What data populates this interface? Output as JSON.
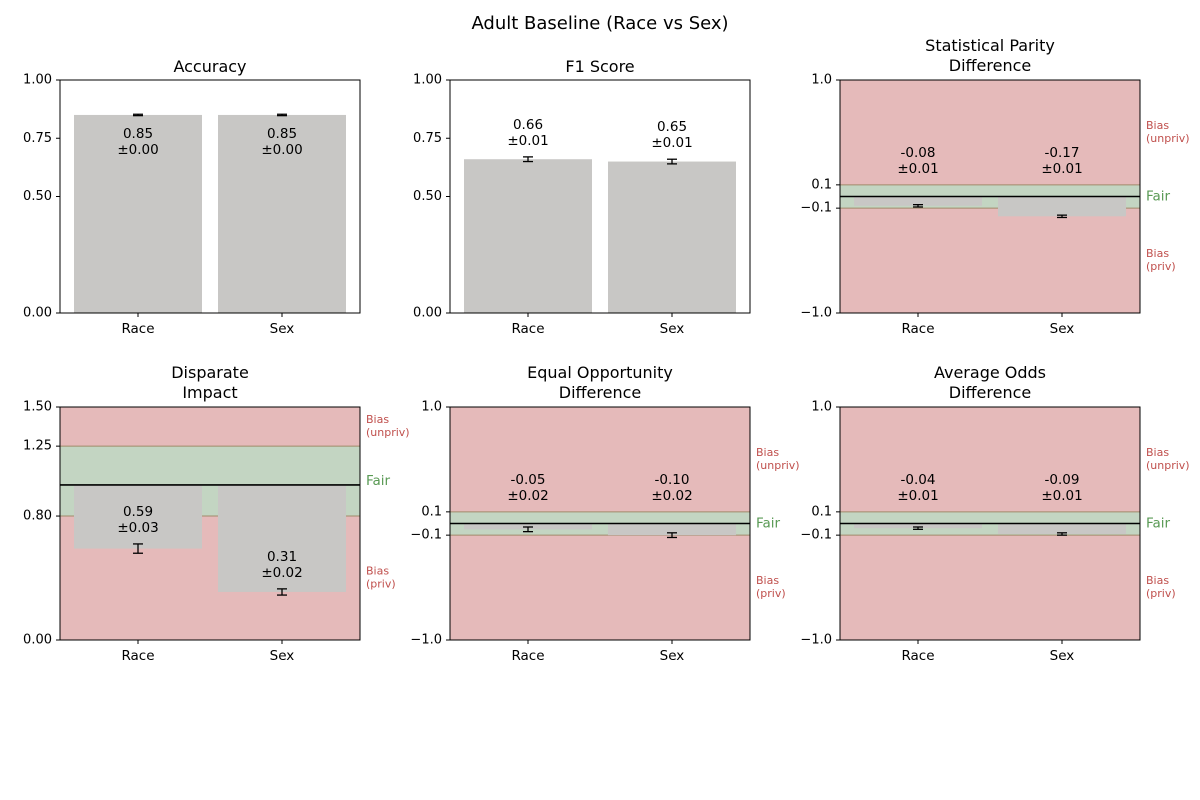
{
  "figure_title": "Adult Baseline (Race vs Sex)",
  "colors": {
    "bar": "#c8c7c5",
    "bias_zone": "#e5baba",
    "fair_zone": "#c3d5c2",
    "bias_text": "#c0504d",
    "fair_text": "#5a9a55",
    "zone_border": "#a08a6a"
  },
  "zone_labels": {
    "bias_unpriv": "Bias\n(unpriv)",
    "fair": "Fair",
    "bias_priv": "Bias\n(priv)"
  },
  "chart_data": [
    {
      "type": "bar",
      "title": "Accuracy",
      "categories": [
        "Race",
        "Sex"
      ],
      "values": [
        0.85,
        0.85
      ],
      "errors": [
        0.003,
        0.003
      ],
      "labels": [
        "0.85\n±0.00",
        "0.85\n±0.00"
      ],
      "ylim": [
        0,
        1
      ],
      "yscale": "linear",
      "yticks": [
        0,
        0.5,
        0.75,
        1
      ],
      "ytick_labels": [
        "0.00",
        "0.50",
        "0.75",
        "1.00"
      ],
      "label_placement": "inside",
      "fairness": null
    },
    {
      "type": "bar",
      "title": "F1 Score",
      "categories": [
        "Race",
        "Sex"
      ],
      "values": [
        0.66,
        0.65
      ],
      "errors": [
        0.01,
        0.01
      ],
      "labels": [
        "0.66\n±0.01",
        "0.65\n±0.01"
      ],
      "ylim": [
        0,
        1
      ],
      "yscale": "linear",
      "yticks": [
        0,
        0.5,
        0.75,
        1
      ],
      "ytick_labels": [
        "0.00",
        "0.50",
        "0.75",
        "1.00"
      ],
      "label_placement": "above",
      "fairness": null
    },
    {
      "type": "bar",
      "title": "Statistical Parity\nDifference",
      "categories": [
        "Race",
        "Sex"
      ],
      "values": [
        -0.08,
        -0.17
      ],
      "errors": [
        0.01,
        0.01
      ],
      "labels": [
        "-0.08\n±0.01",
        "-0.17\n±0.01"
      ],
      "ylim": [
        -1,
        1
      ],
      "yscale": "piecewise",
      "yticks": [
        -1,
        -0.1,
        0.1,
        1
      ],
      "ytick_labels": [
        "−1.0",
        "−0.1",
        "0.1",
        "1.0"
      ],
      "label_placement": "above",
      "fairness": {
        "fair_range": [
          -0.1,
          0.1
        ],
        "reference": 0
      }
    },
    {
      "type": "bar",
      "title": "Disparate\nImpact",
      "categories": [
        "Race",
        "Sex"
      ],
      "values": [
        0.59,
        0.31
      ],
      "errors": [
        0.03,
        0.02
      ],
      "labels": [
        "0.59\n±0.03",
        "0.31\n±0.02"
      ],
      "ylim": [
        0,
        1.5
      ],
      "yscale": "piecewise",
      "yticks": [
        0,
        0.8,
        1.25,
        1.5
      ],
      "ytick_labels": [
        "0.00",
        "0.80",
        "1.25",
        "1.50"
      ],
      "label_placement": "above",
      "fairness": {
        "fair_range": [
          0.8,
          1.25
        ],
        "reference": 1.0
      }
    },
    {
      "type": "bar",
      "title": "Equal Opportunity\nDifference",
      "categories": [
        "Race",
        "Sex"
      ],
      "values": [
        -0.05,
        -0.1
      ],
      "errors": [
        0.02,
        0.02
      ],
      "labels": [
        "-0.05\n±0.02",
        "-0.10\n±0.02"
      ],
      "ylim": [
        -1,
        1
      ],
      "yscale": "piecewise",
      "yticks": [
        -1,
        -0.1,
        0.1,
        1
      ],
      "ytick_labels": [
        "−1.0",
        "−0.1",
        "0.1",
        "1.0"
      ],
      "label_placement": "above",
      "fairness": {
        "fair_range": [
          -0.1,
          0.1
        ],
        "reference": 0
      }
    },
    {
      "type": "bar",
      "title": "Average Odds\nDifference",
      "categories": [
        "Race",
        "Sex"
      ],
      "values": [
        -0.04,
        -0.09
      ],
      "errors": [
        0.01,
        0.01
      ],
      "labels": [
        "-0.04\n±0.01",
        "-0.09\n±0.01"
      ],
      "ylim": [
        -1,
        1
      ],
      "yscale": "piecewise",
      "yticks": [
        -1,
        -0.1,
        0.1,
        1
      ],
      "ytick_labels": [
        "−1.0",
        "−0.1",
        "0.1",
        "1.0"
      ],
      "label_placement": "above",
      "fairness": {
        "fair_range": [
          -0.1,
          0.1
        ],
        "reference": 0
      }
    }
  ]
}
